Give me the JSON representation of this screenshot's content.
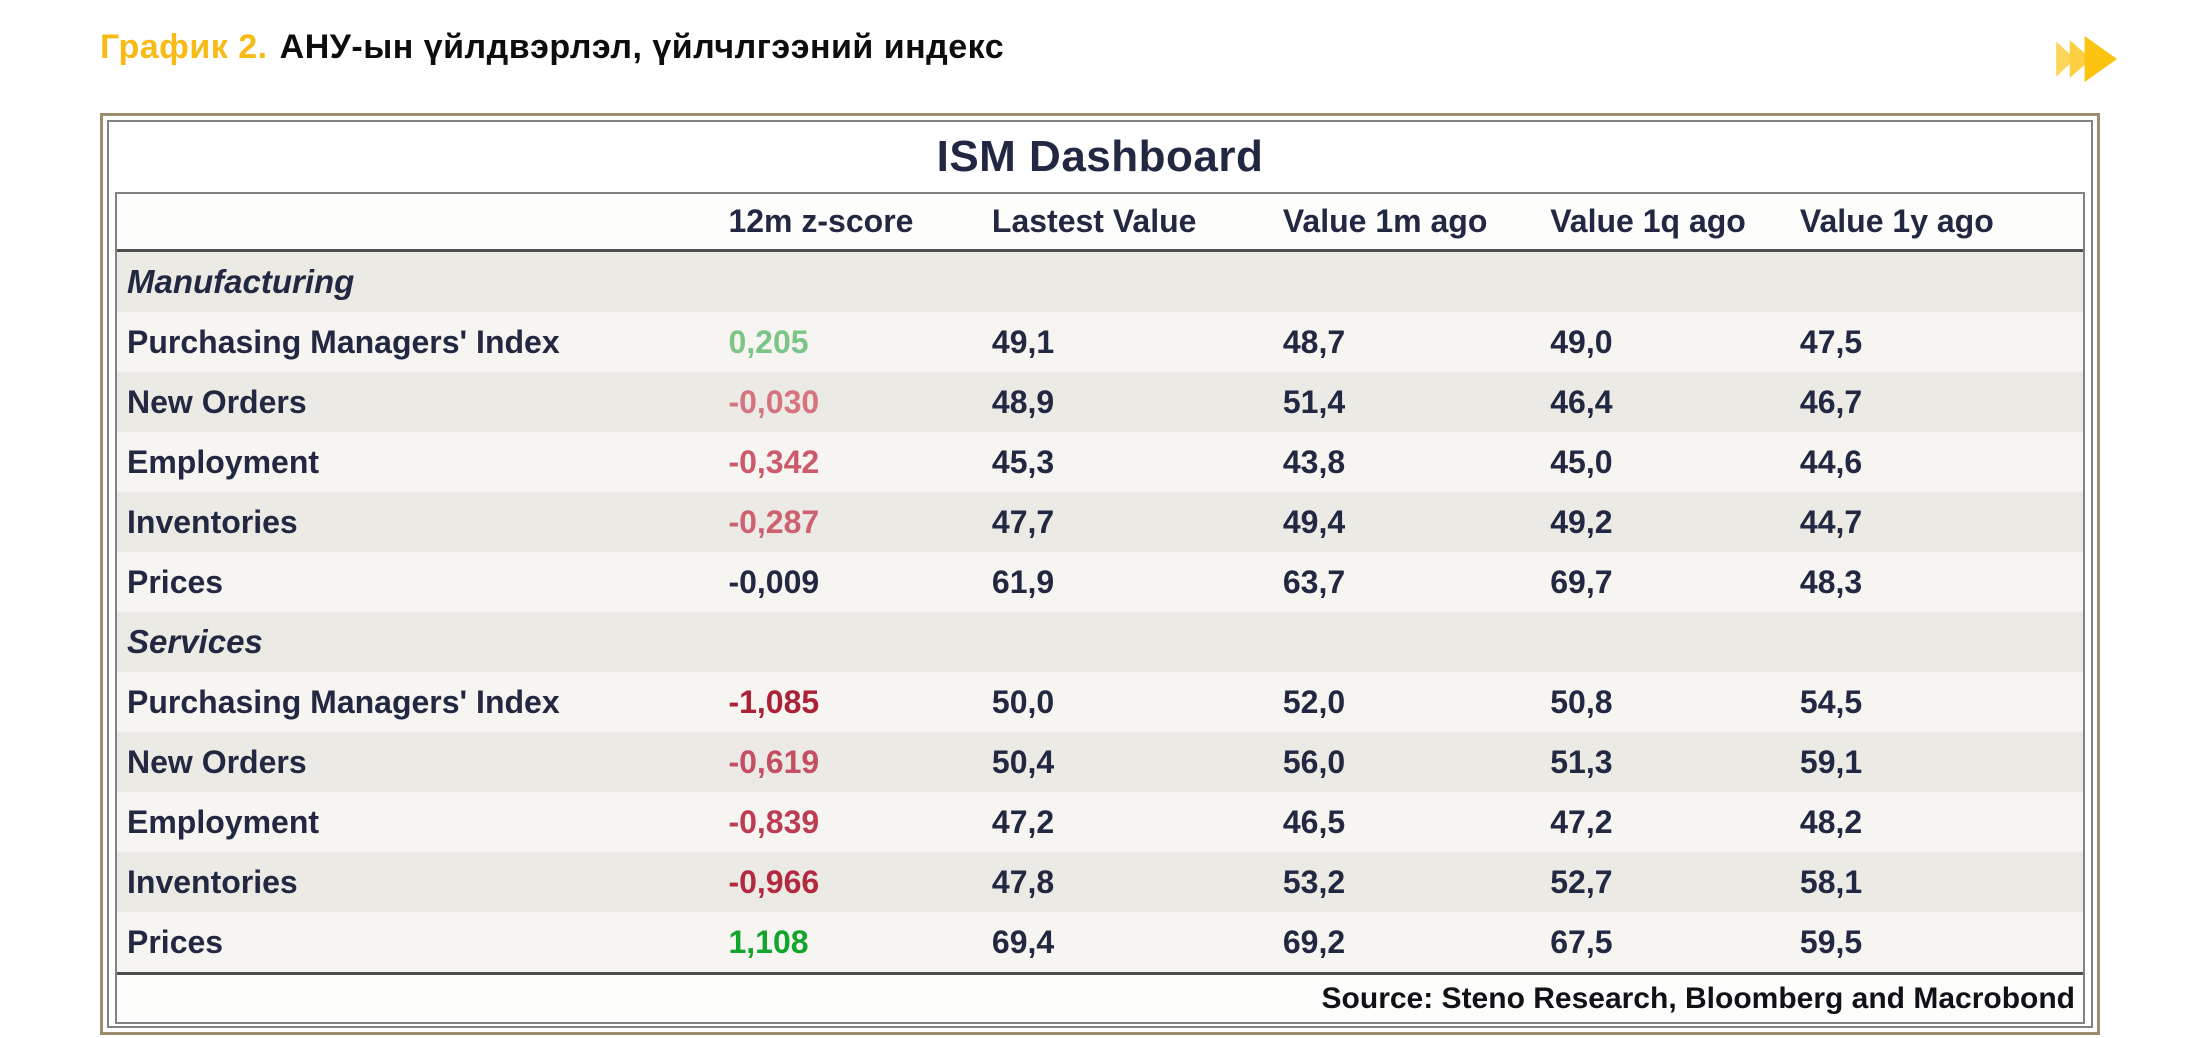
{
  "heading": {
    "prefix": "График 2.",
    "text": "АНУ-ын үйлдвэрлэл, үйлчлгээний индекс"
  },
  "icons": {
    "fast_forward": "fast-forward-icon"
  },
  "colors": {
    "accent": "#F8BB15",
    "navy": "#232842",
    "band_dark": "#EBEAE5",
    "band_light": "#F6F5F1",
    "frame_tan": "#9B8E70",
    "frame_gray": "#828282",
    "separator_dark": "#4F4F4F",
    "icon_gold_front": "#FCC311",
    "icon_gold_back": "#FDD65A"
  },
  "chart_data": {
    "type": "table",
    "title": "ISM Dashboard",
    "columns": [
      "",
      "12m z-score",
      "Lastest Value",
      "Value 1m ago",
      "Value 1q ago",
      "Value 1y ago"
    ],
    "sections": [
      {
        "name": "Manufacturing",
        "rows": [
          {
            "label": "Purchasing Managers' Index",
            "z_score": "0,205",
            "z_color": "#7CC487",
            "values": [
              "49,1",
              "48,7",
              "49,0",
              "47,5"
            ]
          },
          {
            "label": "New Orders",
            "z_score": "-0,030",
            "z_color": "#D5737F",
            "values": [
              "48,9",
              "51,4",
              "46,4",
              "46,7"
            ]
          },
          {
            "label": "Employment",
            "z_score": "-0,342",
            "z_color": "#CC5A6B",
            "values": [
              "45,3",
              "43,8",
              "45,0",
              "44,6"
            ]
          },
          {
            "label": "Inventories",
            "z_score": "-0,287",
            "z_color": "#CE6170",
            "values": [
              "47,7",
              "49,4",
              "49,2",
              "44,7"
            ]
          },
          {
            "label": "Prices",
            "z_score": "-0,009",
            "z_color": "#232842",
            "values": [
              "61,9",
              "63,7",
              "69,7",
              "48,3"
            ]
          }
        ]
      },
      {
        "name": "Services",
        "rows": [
          {
            "label": "Purchasing Managers' Index",
            "z_score": "-1,085",
            "z_color": "#AB2135",
            "values": [
              "50,0",
              "52,0",
              "50,8",
              "54,5"
            ]
          },
          {
            "label": "New Orders",
            "z_score": "-0,619",
            "z_color": "#C54F62",
            "values": [
              "50,4",
              "56,0",
              "51,3",
              "59,1"
            ]
          },
          {
            "label": "Employment",
            "z_score": "-0,839",
            "z_color": "#BC3D52",
            "values": [
              "47,2",
              "46,5",
              "47,2",
              "48,2"
            ]
          },
          {
            "label": "Inventories",
            "z_score": "-0,966",
            "z_color": "#B32A40",
            "values": [
              "47,8",
              "53,2",
              "52,7",
              "58,1"
            ]
          },
          {
            "label": "Prices",
            "z_score": "1,108",
            "z_color": "#12A52C",
            "values": [
              "69,4",
              "69,2",
              "67,5",
              "59,5"
            ]
          }
        ]
      }
    ],
    "source": "Source: Steno Research, Bloomberg and Macrobond"
  }
}
